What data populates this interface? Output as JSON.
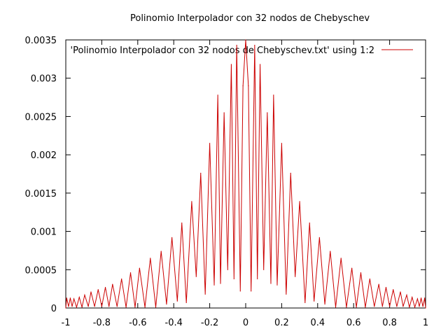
{
  "chart_data": {
    "type": "line",
    "title": "Polinomio Interpolador con 32 nodos de Chebyschev",
    "xlabel": "",
    "ylabel": "",
    "xlim": [
      -1,
      1
    ],
    "ylim": [
      0,
      0.0035
    ],
    "x_ticks": [
      "-1",
      "-0.8",
      "-0.6",
      "-0.4",
      "-0.2",
      "0",
      "0.2",
      "0.4",
      "0.6",
      "0.8",
      "1"
    ],
    "y_ticks": [
      "0",
      "0.0005",
      "0.001",
      "0.0015",
      "0.002",
      "0.0025",
      "0.003",
      "0.0035"
    ],
    "x_tick_values": [
      -1,
      -0.8,
      -0.6,
      -0.4,
      -0.2,
      0,
      0.2,
      0.4,
      0.6,
      0.8,
      1
    ],
    "y_tick_values": [
      0,
      0.0005,
      0.001,
      0.0015,
      0.002,
      0.0025,
      0.003,
      0.0035
    ],
    "grid": false,
    "legend_position": "top-right",
    "series": [
      {
        "name": "'Polinomio Interpolador con 32 nodos de Chebyschev.txt' using 1:2",
        "color": "#cc0000",
        "x": [
          -1.0,
          -0.995,
          -0.985,
          -0.975,
          -0.965,
          -0.955,
          -0.94,
          -0.925,
          -0.91,
          -0.895,
          -0.875,
          -0.86,
          -0.84,
          -0.82,
          -0.8,
          -0.78,
          -0.76,
          -0.74,
          -0.715,
          -0.69,
          -0.665,
          -0.64,
          -0.615,
          -0.59,
          -0.56,
          -0.53,
          -0.5,
          -0.47,
          -0.44,
          -0.41,
          -0.38,
          -0.355,
          -0.33,
          -0.3,
          -0.275,
          -0.25,
          -0.225,
          -0.2,
          -0.175,
          -0.155,
          -0.14,
          -0.12,
          -0.1,
          -0.08,
          -0.065,
          -0.05,
          -0.03,
          -0.015,
          0.0,
          0.015,
          0.03,
          0.05,
          0.065,
          0.08,
          0.1,
          0.12,
          0.14,
          0.155,
          0.175,
          0.2,
          0.225,
          0.25,
          0.275,
          0.3,
          0.33,
          0.355,
          0.38,
          0.41,
          0.44,
          0.47,
          0.5,
          0.53,
          0.56,
          0.59,
          0.615,
          0.64,
          0.665,
          0.69,
          0.715,
          0.74,
          0.76,
          0.78,
          0.8,
          0.82,
          0.84,
          0.86,
          0.875,
          0.895,
          0.91,
          0.925,
          0.94,
          0.955,
          0.965,
          0.975,
          0.985,
          0.995,
          1.0
        ],
        "y": [
          0.0,
          0.00013,
          2e-05,
          0.00013,
          2e-05,
          0.00012,
          1e-05,
          0.00014,
          1e-05,
          0.00017,
          2e-05,
          0.00021,
          2e-05,
          0.00024,
          2e-05,
          0.00027,
          2e-05,
          0.00031,
          2e-05,
          0.00038,
          1e-05,
          0.00046,
          1e-05,
          0.00052,
          1e-05,
          0.00065,
          1e-05,
          0.00074,
          5e-05,
          0.00092,
          9e-05,
          0.00111,
          7e-05,
          0.00139,
          0.00041,
          0.00176,
          0.00018,
          0.00215,
          0.0003,
          0.00278,
          0.00032,
          0.00255,
          0.0005,
          0.00318,
          0.00038,
          0.00343,
          0.00022,
          0.0029,
          0.0035,
          0.0029,
          0.00022,
          0.00343,
          0.00038,
          0.00318,
          0.0005,
          0.00255,
          0.00032,
          0.00278,
          0.0003,
          0.00215,
          0.00018,
          0.00176,
          0.00041,
          0.00139,
          7e-05,
          0.00111,
          9e-05,
          0.00092,
          5e-05,
          0.00074,
          1e-05,
          0.00065,
          1e-05,
          0.00052,
          1e-05,
          0.00046,
          1e-05,
          0.00038,
          2e-05,
          0.00031,
          2e-05,
          0.00027,
          2e-05,
          0.00024,
          2e-05,
          0.00021,
          2e-05,
          0.00017,
          1e-05,
          0.00014,
          1e-05,
          0.00012,
          2e-05,
          0.00013,
          2e-05,
          0.00013,
          0.0
        ]
      }
    ]
  }
}
